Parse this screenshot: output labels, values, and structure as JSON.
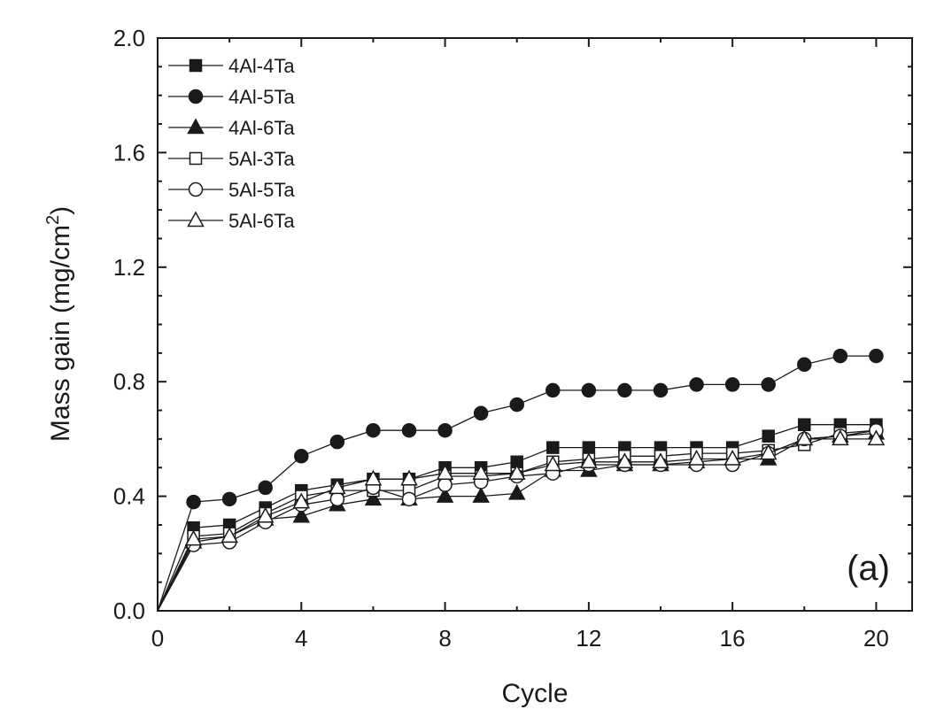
{
  "chart_data": {
    "type": "line",
    "title": "",
    "xlabel": "Cycle",
    "ylabel_main": "Mass gain (mg/cm",
    "ylabel_sup": "2",
    "ylabel_close": ")",
    "panel_label": "(a)",
    "xlim": [
      0,
      21
    ],
    "ylim": [
      0.0,
      2.0
    ],
    "xticks": [
      0,
      4,
      8,
      12,
      16,
      20
    ],
    "xtick_labels": [
      "0",
      "4",
      "8",
      "12",
      "16",
      "20"
    ],
    "yticks": [
      0.0,
      0.4,
      0.8,
      1.2,
      1.6,
      2.0
    ],
    "ytick_labels": [
      "0.0",
      "0.4",
      "0.8",
      "1.2",
      "1.6",
      "2.0"
    ],
    "legend_position": "top-left",
    "x": [
      0,
      1,
      2,
      3,
      4,
      5,
      6,
      7,
      8,
      9,
      10,
      11,
      12,
      13,
      14,
      15,
      16,
      17,
      18,
      19,
      20
    ],
    "series": [
      {
        "name": "4Al-4Ta",
        "marker": "square",
        "filled": true,
        "values": [
          0.0,
          0.29,
          0.3,
          0.36,
          0.42,
          0.44,
          0.46,
          0.46,
          0.5,
          0.5,
          0.52,
          0.57,
          0.57,
          0.57,
          0.57,
          0.57,
          0.57,
          0.61,
          0.65,
          0.65,
          0.65
        ]
      },
      {
        "name": "4Al-5Ta",
        "marker": "circle",
        "filled": true,
        "values": [
          0.0,
          0.38,
          0.39,
          0.43,
          0.54,
          0.59,
          0.63,
          0.63,
          0.63,
          0.69,
          0.72,
          0.77,
          0.77,
          0.77,
          0.77,
          0.79,
          0.79,
          0.79,
          0.86,
          0.89,
          0.89
        ]
      },
      {
        "name": "4Al-6Ta",
        "marker": "triangle",
        "filled": true,
        "values": [
          0.0,
          0.24,
          0.26,
          0.32,
          0.33,
          0.37,
          0.39,
          0.39,
          0.4,
          0.4,
          0.41,
          0.49,
          0.49,
          0.51,
          0.51,
          0.52,
          0.53,
          0.53,
          0.6,
          0.61,
          0.62
        ]
      },
      {
        "name": "5Al-3Ta",
        "marker": "square",
        "filled": false,
        "values": [
          0.0,
          0.26,
          0.27,
          0.34,
          0.4,
          0.42,
          0.42,
          0.42,
          0.47,
          0.47,
          0.48,
          0.52,
          0.53,
          0.54,
          0.54,
          0.55,
          0.55,
          0.56,
          0.58,
          0.62,
          0.63
        ]
      },
      {
        "name": "5Al-5Ta",
        "marker": "circle",
        "filled": false,
        "values": [
          0.0,
          0.23,
          0.24,
          0.31,
          0.37,
          0.39,
          0.43,
          0.39,
          0.44,
          0.45,
          0.47,
          0.48,
          0.51,
          0.51,
          0.51,
          0.51,
          0.51,
          0.55,
          0.6,
          0.61,
          0.63
        ]
      },
      {
        "name": "5Al-6Ta",
        "marker": "triangle",
        "filled": false,
        "values": [
          0.0,
          0.25,
          0.26,
          0.33,
          0.38,
          0.43,
          0.46,
          0.46,
          0.48,
          0.48,
          0.48,
          0.51,
          0.52,
          0.52,
          0.52,
          0.53,
          0.53,
          0.55,
          0.6,
          0.6,
          0.6
        ]
      }
    ]
  },
  "colors": {
    "ink": "#1a1a1a",
    "background": "#ffffff"
  }
}
